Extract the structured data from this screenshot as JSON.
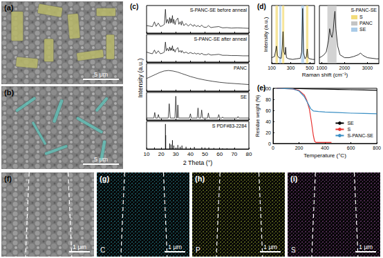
{
  "chart_data": [
    {
      "type": "line",
      "annotations": [
        "(c)"
      ],
      "xlabel": "2 Theta (°)",
      "ylabel": "Intensity (a.u.)",
      "xlim": [
        10,
        80
      ],
      "xticks": [
        10,
        20,
        30,
        40,
        50,
        60,
        70,
        80
      ],
      "ylim": [
        0,
        110
      ],
      "tick_labels": "x",
      "color": "#000000",
      "series": [
        {
          "name": "S-PANC-SE before anneal",
          "x": [
            10,
            12,
            14,
            15.4,
            16.5,
            18,
            19.5,
            21,
            22.2,
            22.9,
            23.5,
            24.3,
            25.1,
            25.8,
            26.3,
            26.7,
            27.2,
            27.7,
            28.2,
            28.6,
            29.5,
            30.1,
            31.4,
            32.1,
            33,
            33.8,
            34.2,
            35.5,
            37,
            38.5,
            40,
            42,
            42.7,
            44,
            45.2,
            46.5,
            47.8,
            49,
            51,
            52.3,
            54,
            56,
            59.4,
            62,
            65,
            68,
            72,
            76,
            80
          ],
          "values": [
            30,
            28,
            26,
            45,
            27,
            40,
            26,
            30,
            35,
            95,
            40,
            55,
            38,
            62,
            40,
            58,
            42,
            70,
            38,
            55,
            34,
            50,
            60,
            35,
            45,
            32,
            48,
            30,
            38,
            28,
            36,
            27,
            34,
            26,
            30,
            25,
            32,
            24,
            23,
            30,
            22,
            24,
            26,
            21,
            22,
            20,
            21,
            20,
            19
          ]
        },
        {
          "name": "S-PANC-SE after anneal",
          "x": [
            10,
            12,
            14,
            15.4,
            16.5,
            18,
            19.5,
            21,
            22.2,
            22.9,
            23.5,
            24.3,
            25.1,
            25.8,
            26.3,
            26.7,
            27.2,
            27.7,
            28.2,
            28.6,
            29.5,
            30.1,
            31.4,
            32.1,
            33,
            33.8,
            34.2,
            35.5,
            37,
            38.5,
            40,
            42,
            42.7,
            44,
            45.2,
            46.5,
            47.8,
            49,
            51,
            52.3,
            54,
            56,
            59.4,
            62,
            65,
            68,
            72,
            76,
            80
          ],
          "values": [
            40,
            36,
            33,
            48,
            34,
            45,
            33,
            36,
            40,
            80,
            45,
            55,
            44,
            60,
            46,
            56,
            47,
            65,
            44,
            52,
            40,
            50,
            58,
            40,
            46,
            38,
            46,
            36,
            40,
            34,
            38,
            33,
            37,
            32,
            35,
            31,
            35,
            30,
            29,
            33,
            28,
            29,
            31,
            27,
            27,
            26,
            26,
            25,
            25
          ]
        },
        {
          "name": "PANC",
          "x": [
            10,
            13,
            16,
            19,
            22,
            25,
            28,
            31,
            34,
            37,
            40,
            45,
            50,
            55,
            60,
            65,
            70,
            75,
            80
          ],
          "values": [
            50,
            58,
            66,
            74,
            80,
            82,
            80,
            76,
            70,
            64,
            58,
            50,
            44,
            39,
            35,
            32,
            30,
            28,
            26
          ]
        },
        {
          "name": "SE",
          "x": [
            10,
            15,
            15.6,
            16.2,
            17.5,
            18.1,
            18.7,
            24.8,
            25.5,
            26.2,
            29.4,
            30,
            30.6,
            31,
            31.4,
            31.9,
            39.3,
            40,
            40.6,
            44.6,
            45.2,
            45.8,
            47.1,
            47.7,
            48.3,
            51.7,
            52.3,
            52.9,
            58.8,
            59.4,
            60,
            61.5,
            62,
            62.5,
            72,
            72.6,
            73.2,
            80
          ],
          "values": [
            8,
            8,
            30,
            8,
            8,
            22,
            8,
            8,
            65,
            8,
            8,
            95,
            8,
            8,
            60,
            8,
            8,
            25,
            8,
            8,
            48,
            8,
            8,
            40,
            8,
            8,
            28,
            8,
            8,
            22,
            8,
            8,
            12,
            8,
            8,
            14,
            8,
            8
          ]
        },
        {
          "name": "S PDF#83-2284",
          "type": "bar",
          "x": [
            15.4,
            22.9,
            23.1,
            25.8,
            26.7,
            27.7,
            28.6,
            31.4,
            33,
            34.2,
            37,
            42.7,
            47.8,
            52.6,
            56,
            62,
            65,
            70
          ],
          "values": [
            6,
            100,
            55,
            22,
            18,
            35,
            14,
            16,
            9,
            14,
            9,
            8,
            7,
            6,
            4,
            3,
            3,
            2
          ]
        }
      ]
    },
    {
      "type": "line",
      "annotations": [
        "(d)"
      ],
      "title": "S-PANC-SE",
      "xlabel": "Raman shift (cm⁻¹)",
      "ylabel": "Intensity (a.u.)",
      "x_segments": [
        {
          "xlim": [
            100,
            550
          ],
          "xticks": [
            100,
            300,
            500
          ]
        },
        {
          "xlim": [
            900,
            3500
          ],
          "xticks": [
            1000,
            2000,
            3000
          ]
        }
      ],
      "ylim": [
        0,
        100
      ],
      "tick_labels": "x",
      "color": "#000000",
      "legend": "upper right",
      "x": [
        100,
        130,
        150,
        160,
        175,
        200,
        210,
        219,
        228,
        240,
        246,
        255,
        280,
        320,
        360,
        400,
        415,
        425,
        435,
        450,
        465,
        473,
        482,
        500,
        530,
        550,
        900,
        1000,
        1100,
        1200,
        1300,
        1350,
        1400,
        1450,
        1500,
        1550,
        1580,
        1620,
        1700,
        1800,
        2000,
        2200,
        2400,
        2600,
        2700,
        2800,
        2900,
        3000,
        3200,
        3400,
        3500
      ],
      "values": [
        10,
        12,
        30,
        14,
        10,
        9,
        25,
        55,
        20,
        15,
        28,
        10,
        8,
        7,
        8,
        9,
        20,
        95,
        18,
        8,
        12,
        25,
        10,
        8,
        7,
        7,
        10,
        12,
        15,
        20,
        40,
        60,
        50,
        45,
        55,
        80,
        90,
        60,
        30,
        15,
        10,
        10,
        12,
        15,
        18,
        14,
        12,
        10,
        9,
        8,
        8
      ],
      "bands": [
        {
          "name": "S",
          "color": "#f3dc7a",
          "ranges": [
            [
              140,
              165
            ],
            [
              210,
              232
            ],
            [
              460,
              485
            ]
          ]
        },
        {
          "name": "PANC",
          "color": "#c4c4c4",
          "ranges": [
            [
              1250,
              1650
            ]
          ]
        },
        {
          "name": "SE",
          "color": "#a9cbe8",
          "ranges": [
            [
              180,
              200
            ],
            [
              410,
              440
            ]
          ]
        }
      ]
    },
    {
      "type": "line",
      "annotations": [
        "(e)"
      ],
      "xlabel": "Temperature (°C)",
      "ylabel": "Residue weight (%)",
      "xlim": [
        0,
        800
      ],
      "xticks": [
        0,
        200,
        400,
        600,
        800
      ],
      "ylim": [
        0,
        100
      ],
      "yticks": [
        0,
        20,
        40,
        60,
        80,
        100
      ],
      "legend": "lower right",
      "series": [
        {
          "name": "SE",
          "color": "#000000",
          "x": [
            30,
            100,
            200,
            300,
            400,
            500,
            600,
            700,
            800
          ],
          "values": [
            100,
            99.8,
            99.5,
            99,
            98.5,
            98,
            97.5,
            97,
            96.5
          ]
        },
        {
          "name": "S",
          "color": "#e8312f",
          "x": [
            30,
            150,
            200,
            240,
            260,
            280,
            295,
            310,
            320,
            330,
            400,
            450
          ],
          "values": [
            100,
            99,
            96,
            88,
            78,
            62,
            40,
            15,
            4,
            2,
            2,
            2
          ]
        },
        {
          "name": "S-PANC-SE",
          "color": "#3a8fc4",
          "x": [
            30,
            150,
            200,
            240,
            270,
            290,
            310,
            350,
            400,
            500,
            600,
            700,
            800
          ],
          "values": [
            100,
            99,
            95,
            85,
            72,
            63,
            59,
            58,
            57,
            56,
            55,
            54.5,
            54
          ]
        }
      ]
    }
  ],
  "images": [
    {
      "panel": "(a)",
      "scale_bar": "5 μm",
      "color": "#b9b96a"
    },
    {
      "panel": "(b)",
      "scale_bar": "5 μm",
      "color": "#62bdb4"
    },
    {
      "panel": "(f)",
      "scale_bar": "1 μm"
    },
    {
      "panel": "(g)",
      "scale_bar": "1 μm",
      "element": "C",
      "color": "#3cc4d8"
    },
    {
      "panel": "(h)",
      "scale_bar": "1 μm",
      "element": "P",
      "color": "#c8e040"
    },
    {
      "panel": "(i)",
      "scale_bar": "1 μm",
      "element": "S",
      "color": "#c466cc"
    }
  ]
}
